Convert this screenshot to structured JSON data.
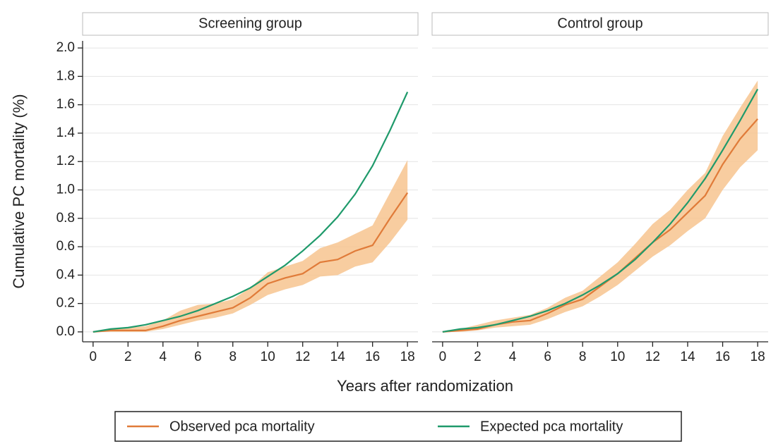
{
  "chart_data": [
    {
      "type": "line",
      "title": "Screening group",
      "ylabel": "Cumulative PC mortality (%)",
      "xlabel": "Years after randomization",
      "x": [
        0,
        1,
        2,
        3,
        4,
        5,
        6,
        7,
        8,
        9,
        10,
        11,
        12,
        13,
        14,
        15,
        16,
        17,
        18
      ],
      "xlim": [
        -0.6,
        18.6
      ],
      "xticks": [
        0,
        2,
        4,
        6,
        8,
        10,
        12,
        14,
        16,
        18
      ],
      "ylim": [
        -0.07,
        2.05
      ],
      "yticks": [
        {
          "value": 0,
          "label": "0.0"
        },
        {
          "value": 0.2,
          "label": "0.2"
        },
        {
          "value": 0.4,
          "label": "0.4"
        },
        {
          "value": 0.6,
          "label": "0.6"
        },
        {
          "value": 0.8,
          "label": "0.8"
        },
        {
          "value": 1,
          "label": "1.0"
        },
        {
          "value": 1.2,
          "label": "1.2"
        },
        {
          "value": 1.4,
          "label": "1.4"
        },
        {
          "value": 1.6,
          "label": "1.6"
        },
        {
          "value": 1.8,
          "label": "1.8"
        },
        {
          "value": 2,
          "label": "2.0"
        }
      ],
      "grid": true,
      "series": [
        {
          "name": "Observed pca mortality",
          "color": "#e07b39",
          "band_color": "#f7c48f",
          "values": [
            0,
            0.01,
            0.01,
            0.01,
            0.04,
            0.08,
            0.11,
            0.14,
            0.17,
            0.24,
            0.34,
            0.38,
            0.41,
            0.49,
            0.51,
            0.57,
            0.61,
            0.8,
            0.98
          ],
          "lower": [
            0,
            0,
            0,
            0,
            0.02,
            0.05,
            0.08,
            0.1,
            0.13,
            0.19,
            0.26,
            0.3,
            0.33,
            0.39,
            0.4,
            0.46,
            0.49,
            0.63,
            0.79
          ],
          "upper": [
            0,
            0.02,
            0.03,
            0.04,
            0.08,
            0.15,
            0.19,
            0.2,
            0.23,
            0.31,
            0.42,
            0.46,
            0.5,
            0.59,
            0.63,
            0.69,
            0.75,
            0.98,
            1.21
          ]
        },
        {
          "name": "Expected pca mortality",
          "color": "#1f9a6b",
          "values": [
            0,
            0.02,
            0.03,
            0.05,
            0.08,
            0.11,
            0.15,
            0.2,
            0.25,
            0.31,
            0.39,
            0.47,
            0.57,
            0.68,
            0.81,
            0.97,
            1.17,
            1.42,
            1.69
          ]
        }
      ]
    },
    {
      "type": "line",
      "title": "Control group",
      "x": [
        0,
        1,
        2,
        3,
        4,
        5,
        6,
        7,
        8,
        9,
        10,
        11,
        12,
        13,
        14,
        15,
        16,
        17,
        18
      ],
      "xlim": [
        -0.6,
        18.6
      ],
      "xticks": [
        0,
        2,
        4,
        6,
        8,
        10,
        12,
        14,
        16,
        18
      ],
      "ylim": [
        -0.07,
        2.05
      ],
      "yticks": [
        0,
        0.2,
        0.4,
        0.6,
        0.8,
        1,
        1.2,
        1.4,
        1.6,
        1.8,
        2
      ],
      "grid": true,
      "series": [
        {
          "color": "#e07b39",
          "band_color": "#f7c48f",
          "values": [
            0,
            0.01,
            0.02,
            0.05,
            0.07,
            0.08,
            0.13,
            0.19,
            0.23,
            0.32,
            0.41,
            0.52,
            0.63,
            0.72,
            0.84,
            0.96,
            1.18,
            1.36,
            1.5
          ],
          "lower": [
            0,
            0,
            0.01,
            0.03,
            0.04,
            0.05,
            0.09,
            0.14,
            0.18,
            0.25,
            0.33,
            0.43,
            0.53,
            0.61,
            0.71,
            0.8,
            1.0,
            1.16,
            1.28
          ],
          "upper": [
            0,
            0.02,
            0.05,
            0.08,
            0.1,
            0.12,
            0.17,
            0.24,
            0.29,
            0.39,
            0.49,
            0.62,
            0.76,
            0.86,
            1.0,
            1.12,
            1.38,
            1.58,
            1.77
          ]
        },
        {
          "color": "#1f9a6b",
          "values": [
            0,
            0.02,
            0.03,
            0.05,
            0.08,
            0.11,
            0.15,
            0.2,
            0.26,
            0.33,
            0.41,
            0.51,
            0.63,
            0.76,
            0.91,
            1.08,
            1.28,
            1.49,
            1.71
          ]
        }
      ]
    }
  ]
}
